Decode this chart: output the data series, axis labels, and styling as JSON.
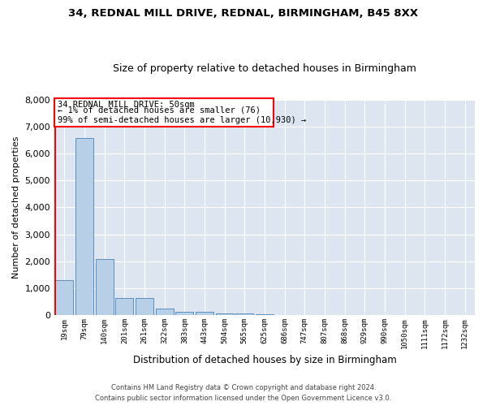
{
  "title1": "34, REDNAL MILL DRIVE, REDNAL, BIRMINGHAM, B45 8XX",
  "title2": "Size of property relative to detached houses in Birmingham",
  "xlabel": "Distribution of detached houses by size in Birmingham",
  "ylabel": "Number of detached properties",
  "bar_color": "#b8cfe8",
  "bar_edge_color": "#5a8fc0",
  "background_color": "#dde5f0",
  "grid_color": "#ffffff",
  "categories": [
    "19sqm",
    "79sqm",
    "140sqm",
    "201sqm",
    "261sqm",
    "322sqm",
    "383sqm",
    "443sqm",
    "504sqm",
    "565sqm",
    "625sqm",
    "686sqm",
    "747sqm",
    "807sqm",
    "868sqm",
    "929sqm",
    "990sqm",
    "1050sqm",
    "1111sqm",
    "1172sqm",
    "1232sqm"
  ],
  "values": [
    1290,
    6570,
    2080,
    640,
    640,
    250,
    130,
    130,
    80,
    80,
    30,
    0,
    0,
    0,
    0,
    0,
    0,
    0,
    0,
    0,
    0
  ],
  "ylim": [
    0,
    8000
  ],
  "yticks": [
    0,
    1000,
    2000,
    3000,
    4000,
    5000,
    6000,
    7000,
    8000
  ],
  "property_label": "34 REDNAL MILL DRIVE: 50sqm",
  "pct_smaller": "1%",
  "n_smaller": 76,
  "pct_larger": "99%",
  "n_larger": 10930,
  "footer1": "Contains HM Land Registry data © Crown copyright and database right 2024.",
  "footer2": "Contains public sector information licensed under the Open Government Licence v3.0."
}
